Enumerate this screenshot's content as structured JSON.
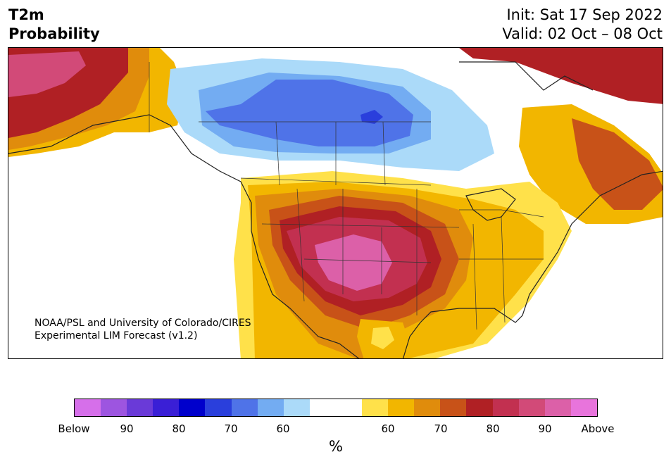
{
  "header": {
    "title_line1": "T2m",
    "title_line2": "Probability",
    "init": "Init: Sat 17 Sep 2022",
    "valid": "Valid: 02 Oct – 08 Oct"
  },
  "credit": {
    "line1": "NOAA/PSL and University of Colorado/CIRES",
    "line2": "Experimental LIM Forecast (v1.2)"
  },
  "colorbar": {
    "unit": "%",
    "colors": [
      "#d66fea",
      "#9d55e0",
      "#6a3ad8",
      "#3a1fd6",
      "#0000cc",
      "#2a3fdc",
      "#4f73e8",
      "#73acf2",
      "#abdaf9",
      "#ffffff",
      "#ffffff",
      "#ffe14a",
      "#f2b600",
      "#e08c0c",
      "#c85218",
      "#b02024",
      "#c23050",
      "#d24a78",
      "#dc60a8",
      "#e874dc"
    ],
    "tick_labels": [
      "Below",
      "90",
      "80",
      "70",
      "60",
      "60",
      "70",
      "80",
      "90",
      "Above"
    ]
  }
}
